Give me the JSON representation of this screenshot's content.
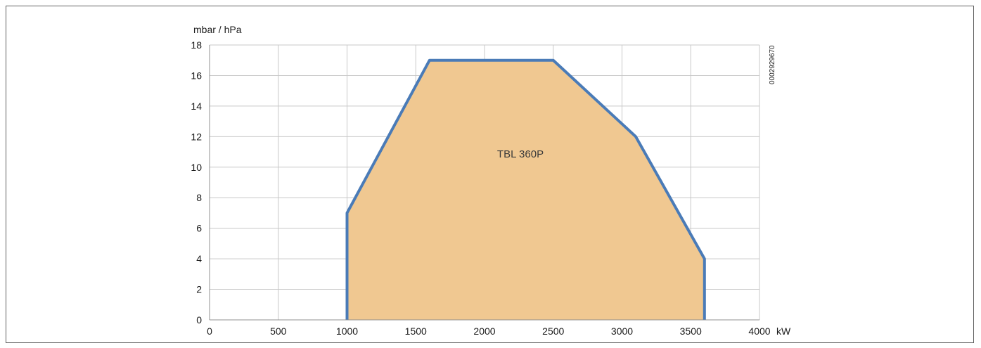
{
  "chart_data": {
    "type": "area",
    "title": "",
    "xlabel": "kW",
    "ylabel": "mbar / hPa",
    "xlim": [
      0,
      4000
    ],
    "ylim": [
      0,
      18
    ],
    "x_ticks": [
      0,
      500,
      1000,
      1500,
      2000,
      2500,
      3000,
      3500,
      4000
    ],
    "y_ticks": [
      0,
      2,
      4,
      6,
      8,
      10,
      12,
      14,
      16,
      18
    ],
    "grid": true,
    "series": [
      {
        "name": "TBL 360P",
        "points": [
          {
            "x": 1000,
            "y": 0
          },
          {
            "x": 1000,
            "y": 7
          },
          {
            "x": 1600,
            "y": 17
          },
          {
            "x": 2500,
            "y": 17
          },
          {
            "x": 3100,
            "y": 12
          },
          {
            "x": 3600,
            "y": 4
          },
          {
            "x": 3600,
            "y": 0
          }
        ]
      }
    ],
    "doc_code": "0002929670"
  },
  "colors": {
    "fill": "#f0c891",
    "line": "#4a7bb7",
    "grid": "#c8c8c8",
    "axis": "#909090"
  }
}
